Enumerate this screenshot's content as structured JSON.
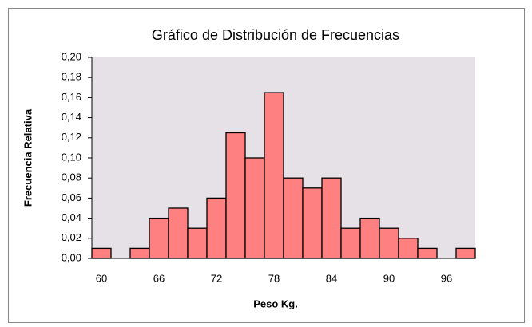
{
  "chart_data": {
    "type": "bar",
    "title": "Gráfico de Distribución de Frecuencias",
    "x_label": "Peso Kg.",
    "y_label": "Frecuencia Relativa",
    "categories": [
      "60",
      null,
      null,
      "66",
      null,
      null,
      "72",
      null,
      null,
      "78",
      null,
      null,
      "84",
      null,
      null,
      "90",
      null,
      null,
      "96",
      null
    ],
    "values": [
      0.01,
      0,
      0.01,
      0.04,
      0.05,
      0.03,
      0.06,
      0.125,
      0.1,
      0.165,
      0.08,
      0.07,
      0.08,
      0.03,
      0.04,
      0.03,
      0.02,
      0.01,
      0,
      0.01
    ],
    "color": "#ff8080",
    "ylim": [
      0,
      0.2
    ],
    "yticks": [
      {
        "value": 0,
        "label": "0,00"
      },
      {
        "value": 0.02,
        "label": "0,02"
      },
      {
        "value": 0.04,
        "label": "0,04"
      },
      {
        "value": 0.06,
        "label": "0,06"
      },
      {
        "value": 0.08,
        "label": "0,08"
      },
      {
        "value": 0.1,
        "label": "0,10"
      },
      {
        "value": 0.12,
        "label": "0,12"
      },
      {
        "value": 0.14,
        "label": "0,14"
      },
      {
        "value": 0.16,
        "label": "0,16"
      },
      {
        "value": 0.18,
        "label": "0,18"
      },
      {
        "value": 0.2,
        "label": "0,20"
      }
    ],
    "grid": false
  }
}
